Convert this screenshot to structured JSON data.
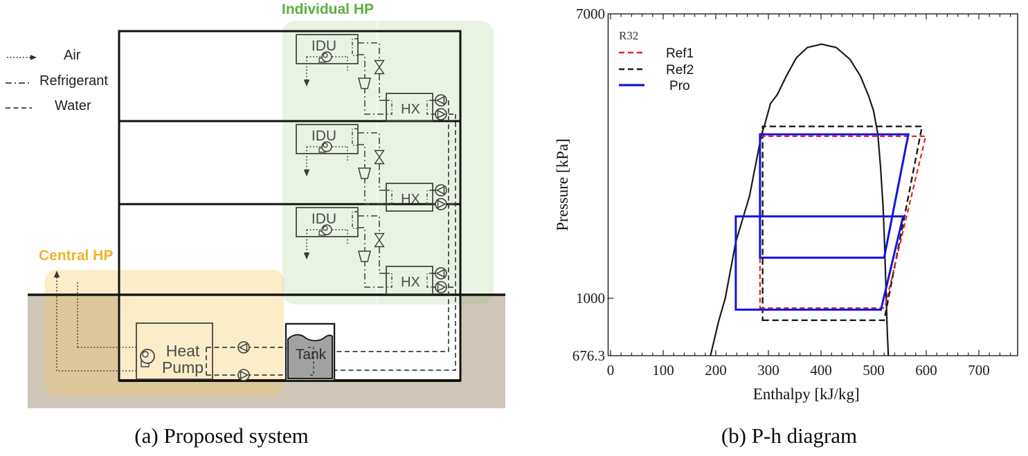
{
  "colors": {
    "zone_individual_fill": "rgba(145,195,115,0.20)",
    "zone_central_fill": "rgba(240,204,97,0.35)",
    "zone_individual_label": "#5aaf41",
    "zone_central_label": "#f0b429",
    "ground": "#cfc5b8",
    "tank_water": "#a2a2a2",
    "component_stroke": "#3a3e36",
    "wall": "#121212",
    "ref1": "#e62020",
    "ref2": "#1a1a1a",
    "pro": "#1414dc"
  },
  "panel_a": {
    "caption": "(a) Proposed system",
    "legend": [
      {
        "label": "Air",
        "style": "dotted-arrow"
      },
      {
        "label": "Refrigerant",
        "style": "dash-dot"
      },
      {
        "label": "Water",
        "style": "dashed"
      }
    ],
    "zones": [
      {
        "label": "Individual HP"
      },
      {
        "label": "Central HP"
      }
    ],
    "components": {
      "indoor_unit": "IDU",
      "heat_exchanger": "HX",
      "heat_pump_line1": "Heat",
      "heat_pump_line2": "Pump",
      "tank": "Tank"
    },
    "floor_count": 3
  },
  "panel_b": {
    "caption": "(b) P-h diagram",
    "chart_data": {
      "type": "line",
      "refrigerant_label": "R32",
      "xlabel": "Enthalpy [kJ/kg]",
      "ylabel": "Pressure [kPa]",
      "x_ticks": [
        0,
        100,
        200,
        300,
        400,
        500,
        600,
        700
      ],
      "x_minor_step": 20,
      "x_minor_max": 770,
      "y_scale": "log",
      "ylim": [
        676.3,
        7000
      ],
      "y_tick_labels": [
        "7000",
        "1000",
        "676.3"
      ],
      "y_tick_values": [
        7000,
        1000,
        676.3
      ],
      "legend_position": "top-left-inside",
      "legend": [
        {
          "name": "Ref1",
          "color": "#e62020",
          "style": "dashed"
        },
        {
          "name": "Ref2",
          "color": "#1a1a1a",
          "style": "dashed"
        },
        {
          "name": "Pro",
          "color": "#1414dc",
          "style": "solid"
        }
      ],
      "saturation_dome": {
        "name": "R32 saturation dome",
        "color": "#1a1a1a",
        "points": [
          [
            190,
            676
          ],
          [
            205,
            850
          ],
          [
            218,
            1000
          ],
          [
            238,
            1470
          ],
          [
            264,
            2010
          ],
          [
            287,
            3070
          ],
          [
            292,
            3240
          ],
          [
            304,
            3790
          ],
          [
            317,
            4030
          ],
          [
            334,
            4570
          ],
          [
            353,
            5180
          ],
          [
            374,
            5560
          ],
          [
            401,
            5690
          ],
          [
            429,
            5560
          ],
          [
            455,
            5130
          ],
          [
            475,
            4570
          ],
          [
            491,
            3970
          ],
          [
            500,
            3600
          ],
          [
            508,
            3070
          ],
          [
            513,
            2470
          ],
          [
            518,
            1870
          ],
          [
            521,
            1420
          ],
          [
            524,
            1000
          ],
          [
            526,
            790
          ],
          [
            528,
            676
          ]
        ]
      },
      "cycles": [
        {
          "name": "Ref2",
          "color": "#1a1a1a",
          "style": "dashed",
          "width": 2.4,
          "polygons": [
            [
              [
                289,
                860
              ],
              [
                520,
                860
              ],
              [
                592,
                3240
              ],
              [
                289,
                3240
              ]
            ]
          ]
        },
        {
          "name": "Ref1",
          "color": "#e62020",
          "style": "dashed",
          "width": 2.2,
          "polygons": [
            [
              [
                284,
                935
              ],
              [
                521,
                935
              ],
              [
                599,
                3030
              ],
              [
                284,
                3030
              ]
            ]
          ]
        },
        {
          "name": "Pro",
          "color": "#1414dc",
          "style": "solid",
          "width": 3,
          "polygons": [
            [
              [
                238,
                925
              ],
              [
                514,
                925
              ],
              [
                556,
                1750
              ],
              [
                238,
                1750
              ]
            ],
            [
              [
                284,
                1320
              ],
              [
                520,
                1320
              ],
              [
                566,
                3070
              ],
              [
                284,
                3070
              ]
            ]
          ]
        }
      ]
    }
  }
}
